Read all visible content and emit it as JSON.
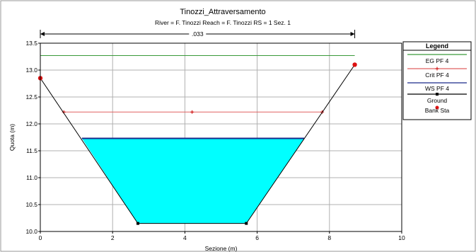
{
  "chart_data": {
    "type": "line",
    "title": "Tinozzi_Attraversamento",
    "subtitle": "River = F. Tinozzi   Reach = F. Tinozzi     RS = 1    Sez. 1",
    "xlabel": "Sezione (m)",
    "ylabel": "Quota (m)",
    "xlim": [
      0,
      10
    ],
    "ylim": [
      10.0,
      13.5
    ],
    "xticks": [
      "0",
      "2",
      "4",
      "6",
      "8",
      "10"
    ],
    "yticks": [
      "10.0",
      "10.5",
      "11.0",
      "11.5",
      "12.0",
      "12.5",
      "13.0",
      "13.5"
    ],
    "grid": true,
    "manning_label": ".033",
    "manning_range": [
      0,
      8.7
    ],
    "legend": {
      "title": "Legend",
      "placement": "right",
      "entries": [
        {
          "label": "EG PF 4",
          "color": "#3a9a3a",
          "marker": "none"
        },
        {
          "label": "Crit PF 4",
          "color": "#e06060",
          "marker": "plus"
        },
        {
          "label": "WS PF 4",
          "color": "#1a2a8a",
          "marker": "none"
        },
        {
          "label": "Ground",
          "color": "#000000",
          "marker": "square"
        },
        {
          "label": "Bank Sta",
          "color": "#dd1111",
          "marker": "circle"
        }
      ]
    },
    "series": [
      {
        "name": "EG PF 4",
        "color": "#3a9a3a",
        "x": [
          0,
          8.7
        ],
        "y": [
          13.27,
          13.27
        ]
      },
      {
        "name": "Crit PF 4",
        "color": "#e06060",
        "x": [
          0.65,
          4.2,
          7.8
        ],
        "y": [
          12.22,
          12.22,
          12.22
        ]
      },
      {
        "name": "WS PF 4",
        "color": "#1a2a8a",
        "x": [
          1.15,
          7.3
        ],
        "y": [
          11.73,
          11.73
        ]
      },
      {
        "name": "Ground",
        "color": "#000000",
        "x": [
          0,
          2.7,
          5.7,
          8.7
        ],
        "y": [
          12.85,
          10.15,
          10.15,
          13.1
        ]
      },
      {
        "name": "Bank Sta",
        "color": "#dd1111",
        "x": [
          0,
          8.7
        ],
        "y": [
          12.85,
          13.1
        ]
      }
    ],
    "water_fill_color": "#00ffff"
  }
}
